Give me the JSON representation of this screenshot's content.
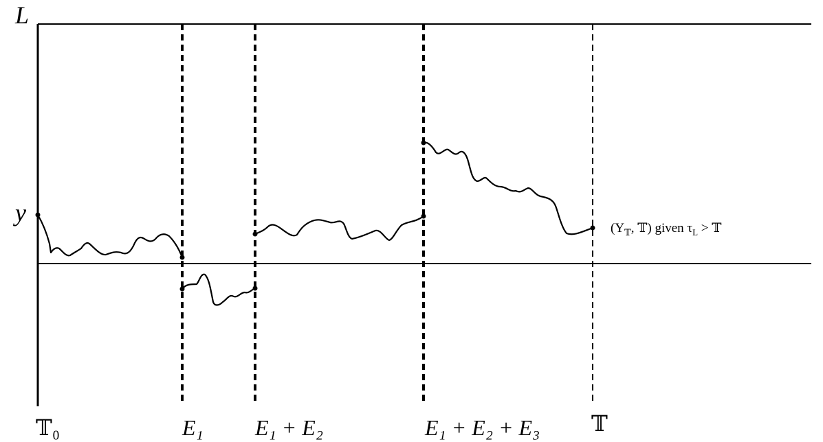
{
  "axis_labels": {
    "top": "L",
    "start": "y"
  },
  "x_labels": [
    "𝕋₀",
    "E₁",
    "E₁ + E₂",
    "E₁ + E₂ + E₃",
    "𝕋"
  ],
  "annotation": [
    [
      "(Y",
      "𝕋"
    ],
    [
      ", 𝕋) given τ",
      "L"
    ],
    [
      " > 𝕋"
    ]
  ]
}
